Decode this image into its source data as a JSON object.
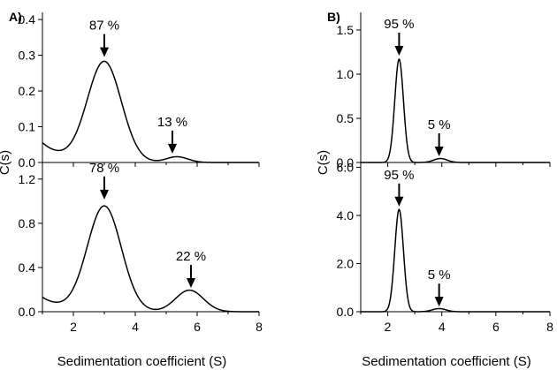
{
  "chart_data": [
    {
      "type": "line",
      "panel_label": "A)",
      "ylabel": "C(s)",
      "xlim": [
        1,
        8
      ],
      "ylim": [
        0,
        0.42
      ],
      "yticks": [
        "0.0",
        "0.1",
        "0.2",
        "0.3",
        "0.4"
      ],
      "xticks": [],
      "xlabel": "",
      "peaks": [
        {
          "x": 3.0,
          "height": 0.28,
          "width": 0.55
        },
        {
          "x": 5.35,
          "height": 0.016,
          "width": 0.35
        }
      ],
      "baseline": {
        "start": 0.055,
        "decay": 0.7
      },
      "annotations": [
        {
          "text": "87 %",
          "x": 3.0,
          "y": 0.29
        },
        {
          "text": "13 %",
          "x": 5.2,
          "y": 0.02
        }
      ]
    },
    {
      "type": "line",
      "panel_label": "",
      "ylabel": "",
      "xlim": [
        1,
        8
      ],
      "ylim": [
        0,
        1.35
      ],
      "yticks": [
        "0.0",
        "0.4",
        "0.8",
        "1.2"
      ],
      "xticks": [
        "2",
        "4",
        "6",
        "8"
      ],
      "xlabel": "Sedimentation coefficient (S)",
      "peaks": [
        {
          "x": 3.0,
          "height": 0.95,
          "width": 0.55
        },
        {
          "x": 5.75,
          "height": 0.195,
          "width": 0.45
        }
      ],
      "baseline": {
        "start": 0.13,
        "decay": 0.7
      },
      "annotations": [
        {
          "text": "78 %",
          "x": 3.0,
          "y": 1.0
        },
        {
          "text": "22 %",
          "x": 5.8,
          "y": 0.2
        }
      ]
    },
    {
      "type": "line",
      "panel_label": "B)",
      "ylabel": "C(s)",
      "xlim": [
        1,
        8
      ],
      "ylim": [
        0,
        1.7
      ],
      "yticks": [
        "0.0",
        "0.5",
        "1.0",
        "1.5"
      ],
      "xticks": [],
      "xlabel": "",
      "peaks": [
        {
          "x": 2.42,
          "height": 1.17,
          "width": 0.16
        },
        {
          "x": 3.95,
          "height": 0.045,
          "width": 0.25
        }
      ],
      "baseline": {
        "start": 0.0,
        "decay": 1.0
      },
      "annotations": [
        {
          "text": "95 %",
          "x": 2.42,
          "y": 1.19
        },
        {
          "text": "5 %",
          "x": 3.9,
          "y": 0.05
        }
      ]
    },
    {
      "type": "line",
      "panel_label": "",
      "ylabel": "",
      "xlim": [
        1,
        8
      ],
      "ylim": [
        0,
        6.2
      ],
      "yticks": [
        "0.0",
        "2.0",
        "4.0",
        "6.0"
      ],
      "xticks": [
        "2",
        "4",
        "6",
        "8"
      ],
      "xlabel": "Sedimentation coefficient (S)",
      "peaks": [
        {
          "x": 2.42,
          "height": 4.25,
          "width": 0.16
        },
        {
          "x": 3.9,
          "height": 0.13,
          "width": 0.25
        }
      ],
      "baseline": {
        "start": 0.0,
        "decay": 1.0
      },
      "annotations": [
        {
          "text": "95 %",
          "x": 2.42,
          "y": 4.3
        },
        {
          "text": "5 %",
          "x": 3.9,
          "y": 0.14
        }
      ]
    }
  ]
}
